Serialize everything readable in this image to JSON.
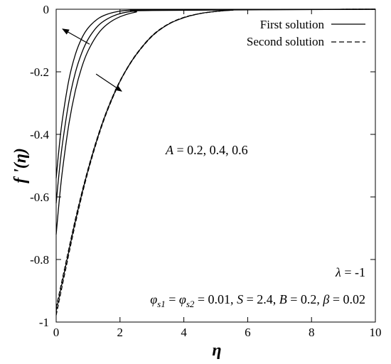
{
  "chart_data": {
    "type": "line",
    "xlabel": "η",
    "ylabel": "f '(η)",
    "xlim": [
      0,
      10
    ],
    "ylim": [
      -1,
      0
    ],
    "xticks": [
      "0",
      "2",
      "4",
      "6",
      "8",
      "10"
    ],
    "yticks": [
      "0",
      "-0.2",
      "-0.4",
      "-0.6",
      "-0.8",
      "-1"
    ],
    "grid": false,
    "legend": {
      "placement": "top-right",
      "entries": [
        {
          "label": "First solution",
          "style": "solid"
        },
        {
          "label": "Second solution",
          "style": "dashed"
        }
      ]
    },
    "annotations": {
      "A_values": "A = 0.2, 0.4, 0.6",
      "lambda": "λ = -1",
      "params": "φs1 = φs2 = 0.01, S = 2.4, B = 0.2, β = 0.02"
    },
    "series": [
      {
        "style": "solid",
        "A": 0.2,
        "x": [
          0,
          0.1,
          0.2,
          0.4,
          0.6,
          0.8,
          1.0,
          1.3,
          1.6,
          2.0,
          2.5,
          3.0,
          10
        ],
        "y": [
          -0.54,
          -0.435,
          -0.349,
          -0.225,
          -0.145,
          -0.093,
          -0.06,
          -0.031,
          -0.016,
          -0.006,
          -0.002,
          -0.001,
          0
        ]
      },
      {
        "style": "solid",
        "A": 0.4,
        "x": [
          0,
          0.1,
          0.2,
          0.4,
          0.6,
          0.8,
          1.0,
          1.3,
          1.6,
          2.0,
          2.5,
          3.0,
          10
        ],
        "y": [
          -0.62,
          -0.515,
          -0.428,
          -0.295,
          -0.203,
          -0.14,
          -0.096,
          -0.054,
          -0.031,
          -0.014,
          -0.005,
          -0.002,
          0
        ]
      },
      {
        "style": "solid",
        "A": 0.6,
        "x": [
          0,
          0.1,
          0.2,
          0.4,
          0.6,
          0.8,
          1.0,
          1.3,
          1.6,
          2.0,
          2.5,
          3.0,
          10
        ],
        "y": [
          -0.72,
          -0.608,
          -0.513,
          -0.366,
          -0.261,
          -0.186,
          -0.133,
          -0.08,
          -0.048,
          -0.024,
          -0.009,
          -0.004,
          0
        ]
      },
      {
        "style": "dashed",
        "A": 0.2,
        "x": [
          0,
          0.3,
          0.6,
          0.9,
          1.2,
          1.5,
          1.8,
          2.1,
          2.5,
          3.0,
          3.5,
          4.0,
          4.5,
          5.0,
          5.5,
          6.0,
          10
        ],
        "y": [
          -0.955,
          -0.812,
          -0.672,
          -0.548,
          -0.44,
          -0.348,
          -0.272,
          -0.21,
          -0.145,
          -0.085,
          -0.048,
          -0.026,
          -0.014,
          -0.007,
          -0.003,
          -0.001,
          0
        ]
      },
      {
        "style": "dashed",
        "A": 0.4,
        "x": [
          0,
          0.3,
          0.6,
          0.9,
          1.2,
          1.5,
          1.8,
          2.1,
          2.5,
          3.0,
          3.5,
          4.0,
          4.5,
          5.0,
          5.5,
          6.0,
          10
        ],
        "y": [
          -0.965,
          -0.82,
          -0.678,
          -0.552,
          -0.443,
          -0.35,
          -0.274,
          -0.211,
          -0.146,
          -0.086,
          -0.049,
          -0.027,
          -0.014,
          -0.007,
          -0.003,
          -0.001,
          0
        ]
      },
      {
        "style": "dashed",
        "A": 0.6,
        "x": [
          0,
          0.3,
          0.6,
          0.9,
          1.2,
          1.5,
          1.8,
          2.1,
          2.5,
          3.0,
          3.5,
          4.0,
          4.5,
          5.0,
          5.5,
          6.0,
          10
        ],
        "y": [
          -0.978,
          -0.83,
          -0.686,
          -0.557,
          -0.447,
          -0.353,
          -0.276,
          -0.212,
          -0.147,
          -0.087,
          -0.049,
          -0.027,
          -0.014,
          -0.007,
          -0.003,
          -0.001,
          0
        ]
      }
    ],
    "arrows": [
      {
        "from": [
          1.05,
          -0.112
        ],
        "to": [
          0.2,
          -0.063
        ]
      },
      {
        "from": [
          1.25,
          -0.207
        ],
        "to": [
          2.05,
          -0.262
        ]
      }
    ]
  }
}
